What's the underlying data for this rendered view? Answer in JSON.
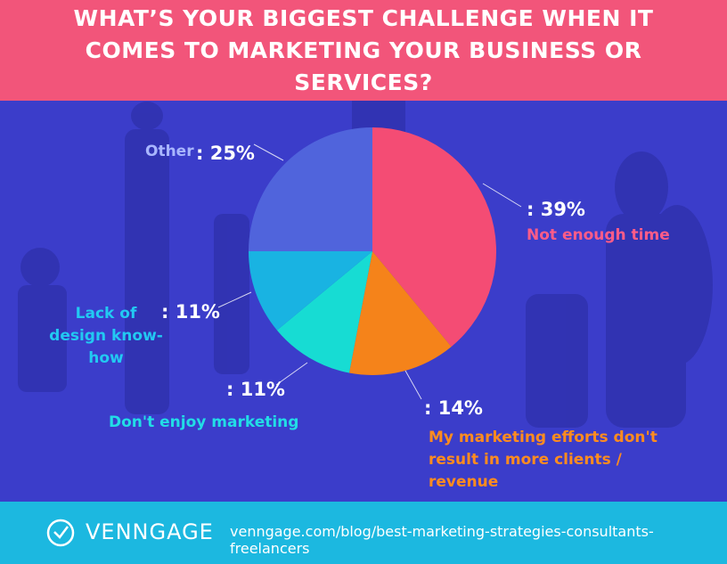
{
  "chart_data": {
    "type": "pie",
    "title": "WHAT’S YOUR BIGGEST CHALLENGE WHEN IT COMES TO MARKETING YOUR BUSINESS OR SERVICES?",
    "categories": [
      "Not enough time",
      "My marketing efforts don't result in more clients / revenue",
      "Don't enjoy marketing",
      "Lack of design know-how",
      "Other"
    ],
    "values": [
      39,
      14,
      11,
      11,
      25
    ],
    "value_labels": [
      ": 39%",
      ": 14%",
      ": 11%",
      ": 11%",
      ": 25%"
    ],
    "colors": [
      "#f44c74",
      "#f5831a",
      "#17dcd3",
      "#19b3e2",
      "#5064dc"
    ]
  },
  "footer": {
    "brand": "VENNGAGE",
    "url": "venngage.com/blog/best-marketing-strategies-consultants-freelancers"
  }
}
